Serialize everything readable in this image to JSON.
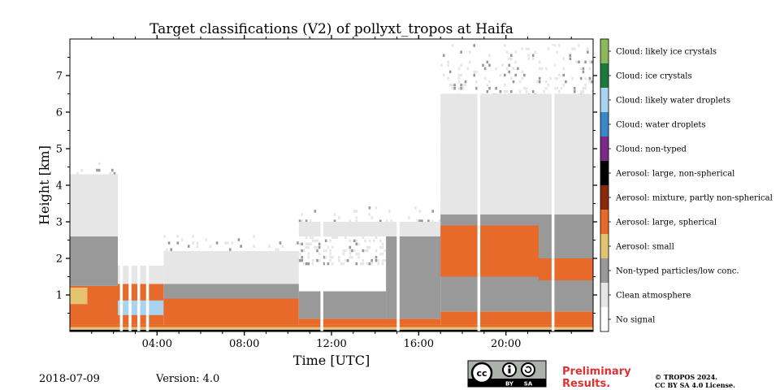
{
  "chart_data": {
    "type": "heatmap",
    "title": "Target classifications (V2) of pollyxt_tropos at Haifa",
    "xlabel": "Time [UTC]",
    "ylabel": "Height [km]",
    "xlim_hours": [
      0,
      24
    ],
    "ylim_km": [
      0,
      8
    ],
    "x_ticks": [
      {
        "hour": 4,
        "label": "04:00"
      },
      {
        "hour": 8,
        "label": "08:00"
      },
      {
        "hour": 12,
        "label": "12:00"
      },
      {
        "hour": 16,
        "label": "16:00"
      },
      {
        "hour": 20,
        "label": "20:00"
      }
    ],
    "y_ticks": [
      {
        "km": 1,
        "label": "1"
      },
      {
        "km": 2,
        "label": "2"
      },
      {
        "km": 3,
        "label": "3"
      },
      {
        "km": 4,
        "label": "4"
      },
      {
        "km": 5,
        "label": "5"
      },
      {
        "km": 6,
        "label": "6"
      },
      {
        "km": 7,
        "label": "7"
      }
    ],
    "classes": [
      {
        "code": 0,
        "label": "No signal",
        "color": "#ffffff"
      },
      {
        "code": 1,
        "label": "Clean atmosphere",
        "color": "#e6e6e6"
      },
      {
        "code": 2,
        "label": "Non-typed particles/low conc.",
        "color": "#999999"
      },
      {
        "code": 3,
        "label": "Aerosol: small",
        "color": "#e3c36f"
      },
      {
        "code": 4,
        "label": "Aerosol: large, spherical",
        "color": "#e86a2b"
      },
      {
        "code": 5,
        "label": "Aerosol: mixture, partly non-spherical",
        "color": "#8a2a0a"
      },
      {
        "code": 6,
        "label": "Aerosol: large, non-spherical",
        "color": "#000000"
      },
      {
        "code": 7,
        "label": "Cloud: non-typed",
        "color": "#7b2a8a"
      },
      {
        "code": 8,
        "label": "Cloud: water droplets",
        "color": "#3b88c8"
      },
      {
        "code": 9,
        "label": "Cloud: likely water droplets",
        "color": "#a8d4f0"
      },
      {
        "code": 10,
        "label": "Cloud: ice crystals",
        "color": "#1a7a3a"
      },
      {
        "code": 11,
        "label": "Cloud: likely ice crystals",
        "color": "#8ab85a"
      }
    ],
    "approx_layers": [
      {
        "start_h": 0,
        "end_h": 24,
        "bottom_km": 0.0,
        "top_km": 0.05,
        "class": 6
      },
      {
        "start_h": 0,
        "end_h": 24,
        "bottom_km": 0.05,
        "top_km": 0.12,
        "class": 3
      },
      {
        "start_h": 0,
        "end_h": 24,
        "bottom_km": 0.12,
        "top_km": 0.18,
        "class": 4
      },
      {
        "start_h": 0,
        "end_h": 2.2,
        "bottom_km": 0.18,
        "top_km": 1.25,
        "class": 4
      },
      {
        "start_h": 0,
        "end_h": 0.8,
        "bottom_km": 0.75,
        "top_km": 1.2,
        "class": 3
      },
      {
        "start_h": 0,
        "end_h": 2.2,
        "bottom_km": 1.25,
        "top_km": 2.6,
        "class": 2
      },
      {
        "start_h": 0,
        "end_h": 2.2,
        "bottom_km": 2.6,
        "top_km": 4.3,
        "class": 1
      },
      {
        "start_h": 2.2,
        "end_h": 4.3,
        "bottom_km": 0.18,
        "top_km": 1.3,
        "class": 4
      },
      {
        "start_h": 2.2,
        "end_h": 4.3,
        "bottom_km": 0.45,
        "top_km": 0.85,
        "class": 9
      },
      {
        "start_h": 2.2,
        "end_h": 4.3,
        "bottom_km": 1.3,
        "top_km": 1.8,
        "class": 1
      },
      {
        "start_h": 4.3,
        "end_h": 10.5,
        "bottom_km": 0.18,
        "top_km": 0.9,
        "class": 4
      },
      {
        "start_h": 4.3,
        "end_h": 10.5,
        "bottom_km": 0.9,
        "top_km": 1.3,
        "class": 2
      },
      {
        "start_h": 4.3,
        "end_h": 10.5,
        "bottom_km": 1.3,
        "top_km": 2.2,
        "class": 1
      },
      {
        "start_h": 10.5,
        "end_h": 17,
        "bottom_km": 0.18,
        "top_km": 0.35,
        "class": 4
      },
      {
        "start_h": 10.5,
        "end_h": 14.5,
        "bottom_km": 0.35,
        "top_km": 1.1,
        "class": 2
      },
      {
        "start_h": 14.5,
        "end_h": 17,
        "bottom_km": 0.35,
        "top_km": 2.6,
        "class": 2
      },
      {
        "start_h": 10.5,
        "end_h": 17,
        "bottom_km": 2.6,
        "top_km": 3.0,
        "class": 1
      },
      {
        "start_h": 17,
        "end_h": 24,
        "bottom_km": 0.18,
        "top_km": 0.55,
        "class": 4
      },
      {
        "start_h": 17,
        "end_h": 24,
        "bottom_km": 0.55,
        "top_km": 3.2,
        "class": 2
      },
      {
        "start_h": 17,
        "end_h": 21.5,
        "bottom_km": 1.5,
        "top_km": 2.9,
        "class": 4
      },
      {
        "start_h": 21.5,
        "end_h": 24,
        "bottom_km": 1.4,
        "top_km": 2.0,
        "class": 4
      },
      {
        "start_h": 17,
        "end_h": 24,
        "bottom_km": 3.2,
        "top_km": 6.5,
        "class": 1
      }
    ],
    "signal_gaps_h": [
      2.35,
      2.75,
      3.15,
      3.55,
      11.55,
      15.05,
      18.75,
      22.15
    ]
  },
  "footer": {
    "date": "2018-07-09",
    "version": "Version: 4.0",
    "license_badge": [
      "cc",
      "BY",
      "SA"
    ],
    "preliminary_line1": "Preliminary",
    "preliminary_line2": "Results.",
    "copyright_line1": "© TROPOS 2024.",
    "copyright_line2": "CC BY SA 4.0 License."
  }
}
